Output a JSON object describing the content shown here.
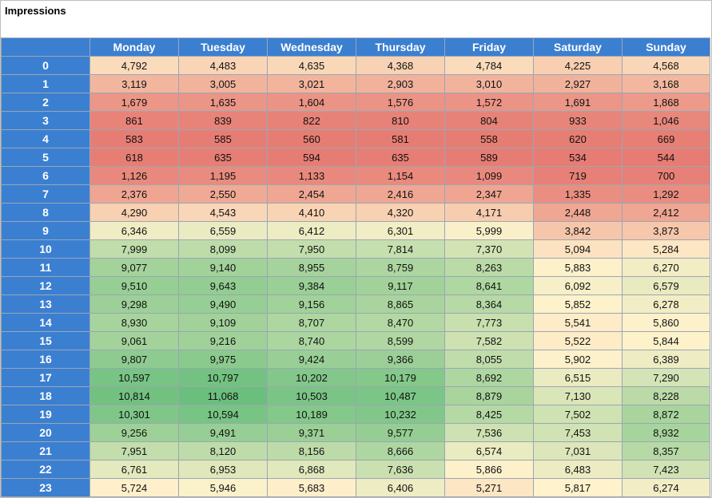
{
  "chart_data": {
    "type": "heatmap",
    "title": "Impressions",
    "columns": [
      "Monday",
      "Tuesday",
      "Wednesday",
      "Thursday",
      "Friday",
      "Saturday",
      "Sunday"
    ],
    "rows": [
      "0",
      "1",
      "2",
      "3",
      "4",
      "5",
      "6",
      "7",
      "8",
      "9",
      "10",
      "11",
      "12",
      "13",
      "14",
      "15",
      "16",
      "17",
      "18",
      "19",
      "20",
      "21",
      "22",
      "23"
    ],
    "values": [
      [
        4792,
        4483,
        4635,
        4368,
        4784,
        4225,
        4568
      ],
      [
        3119,
        3005,
        3021,
        2903,
        3010,
        2927,
        3168
      ],
      [
        1679,
        1635,
        1604,
        1576,
        1572,
        1691,
        1868
      ],
      [
        861,
        839,
        822,
        810,
        804,
        933,
        1046
      ],
      [
        583,
        585,
        560,
        581,
        558,
        620,
        669
      ],
      [
        618,
        635,
        594,
        635,
        589,
        534,
        544
      ],
      [
        1126,
        1195,
        1133,
        1154,
        1099,
        719,
        700
      ],
      [
        2376,
        2550,
        2454,
        2416,
        2347,
        1335,
        1292
      ],
      [
        4290,
        4543,
        4410,
        4320,
        4171,
        2448,
        2412
      ],
      [
        6346,
        6559,
        6412,
        6301,
        5999,
        3842,
        3873
      ],
      [
        7999,
        8099,
        7950,
        7814,
        7370,
        5094,
        5284
      ],
      [
        9077,
        9140,
        8955,
        8759,
        8263,
        5883,
        6270
      ],
      [
        9510,
        9643,
        9384,
        9117,
        8641,
        6092,
        6579
      ],
      [
        9298,
        9490,
        9156,
        8865,
        8364,
        5852,
        6278
      ],
      [
        8930,
        9109,
        8707,
        8470,
        7773,
        5541,
        5860
      ],
      [
        9061,
        9216,
        8740,
        8599,
        7582,
        5522,
        5844
      ],
      [
        9807,
        9975,
        9424,
        9366,
        8055,
        5902,
        6389
      ],
      [
        10597,
        10797,
        10202,
        10179,
        8692,
        6515,
        7290
      ],
      [
        10814,
        11068,
        10503,
        10487,
        8879,
        7130,
        8228
      ],
      [
        10301,
        10594,
        10189,
        10232,
        8425,
        7502,
        8872
      ],
      [
        9256,
        9491,
        9371,
        9577,
        7536,
        7453,
        8932
      ],
      [
        7951,
        8120,
        8156,
        8666,
        6574,
        7031,
        8357
      ],
      [
        6761,
        6953,
        6868,
        7636,
        5866,
        6483,
        7423
      ],
      [
        5724,
        5946,
        5683,
        6406,
        5271,
        5817,
        6274
      ]
    ],
    "color_scale": {
      "low": "#e67c73",
      "mid": "#fff2cc",
      "high": "#6bbf7d"
    },
    "header_color": "#3b7fd1"
  }
}
